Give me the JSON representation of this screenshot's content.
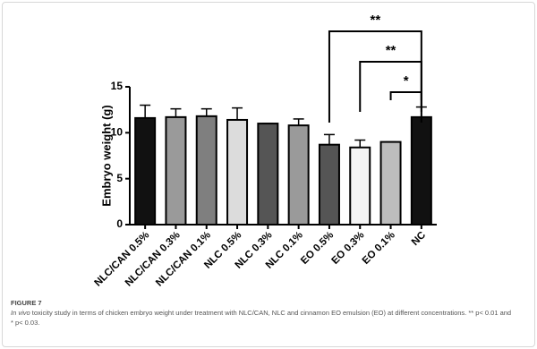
{
  "figure_label": "FIGURE 7",
  "caption_italic": "In vivo",
  "caption": "toxicity study in terms of chicken embryo weight under treatment with NLC/CAN, NLC and cinnamon EO emulsion (EO) at different concentrations. ** p< 0.01 and * p< 0.03.",
  "chart_data": {
    "type": "bar",
    "y_label": "Embryo weight (g)",
    "categories": [
      "NLC/CAN 0.5%",
      "NLC/CAN 0.3%",
      "NLC/CAN 0.1%",
      "NLC 0.5%",
      "NLC 0.3%",
      "NLC 0.1%",
      "EO 0.5%",
      "EO 0.3%",
      "EO 0.1%",
      "NC"
    ],
    "values": [
      11.6,
      11.7,
      11.8,
      11.4,
      11.0,
      10.8,
      8.7,
      8.4,
      9.0,
      11.7
    ],
    "errors": [
      1.4,
      0.9,
      0.8,
      1.3,
      0,
      0.7,
      1.1,
      0.8,
      0,
      1.1
    ],
    "colors": [
      "#111111",
      "#9a9a9a",
      "#7f7f7f",
      "#dcdcdc",
      "#555555",
      "#9a9a9a",
      "#555555",
      "#f4f4f4",
      "#bdbdbd",
      "#111111"
    ],
    "ylim": [
      0,
      15
    ],
    "yticks": [
      0,
      5,
      10,
      15
    ],
    "annotations": [
      {
        "text": "**",
        "categories": [
          "EO 0.5%",
          "NC"
        ]
      },
      {
        "text": "**",
        "categories": [
          "EO 0.3%",
          "NC"
        ]
      },
      {
        "text": "*",
        "categories": [
          "EO 0.1%",
          "NC"
        ]
      }
    ]
  }
}
